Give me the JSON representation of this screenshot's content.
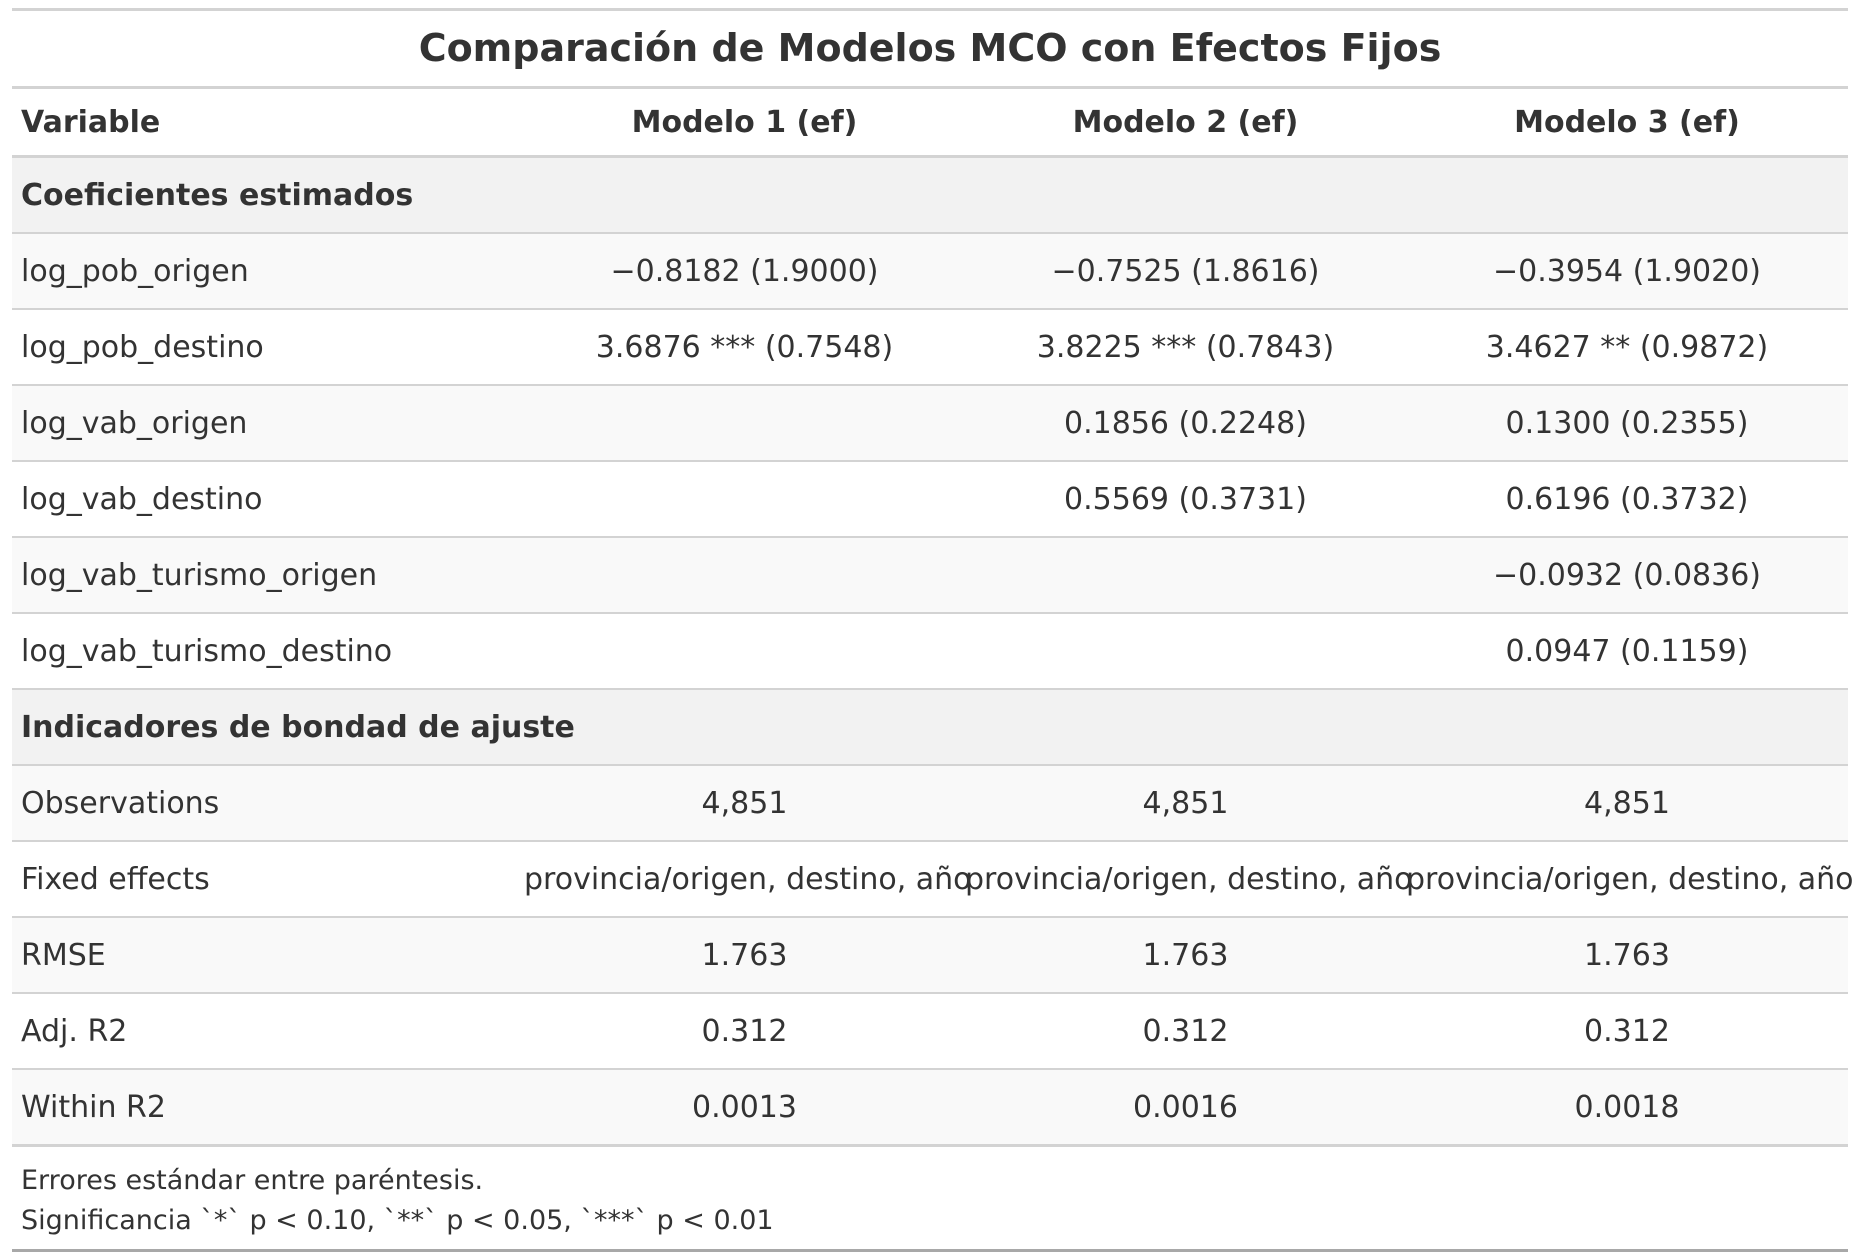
{
  "title": "Comparación de Modelos MCO con Efectos Fijos",
  "columns": [
    "Variable",
    "Modelo 1 (ef)",
    "Modelo 2 (ef)",
    "Modelo 3 (ef)"
  ],
  "groups": [
    {
      "label": "Coeficientes estimados",
      "rows": [
        {
          "variable": "log_pob_origen",
          "m1": "−0.8182 (1.9000)",
          "m2": "−0.7525 (1.8616)",
          "m3": "−0.3954 (1.9020)"
        },
        {
          "variable": "log_pob_destino",
          "m1": "3.6876 *** (0.7548)",
          "m2": "3.8225 *** (0.7843)",
          "m3": "3.4627 ** (0.9872)"
        },
        {
          "variable": "log_vab_origen",
          "m1": "",
          "m2": "0.1856 (0.2248)",
          "m3": "0.1300 (0.2355)"
        },
        {
          "variable": "log_vab_destino",
          "m1": "",
          "m2": "0.5569 (0.3731)",
          "m3": "0.6196 (0.3732)"
        },
        {
          "variable": "log_vab_turismo_origen",
          "m1": "",
          "m2": "",
          "m3": "−0.0932 (0.0836)"
        },
        {
          "variable": "log_vab_turismo_destino",
          "m1": "",
          "m2": "",
          "m3": "0.0947 (0.1159)"
        }
      ]
    },
    {
      "label": "Indicadores de bondad de ajuste",
      "rows": [
        {
          "variable": "Observations",
          "m1": "4,851",
          "m2": "4,851",
          "m3": "4,851"
        },
        {
          "variable": "Fixed effects",
          "m1": "provincia/origen, destino, año",
          "m2": "provincia/origen, destino, año",
          "m3": "provincia/origen, destino, año"
        },
        {
          "variable": "RMSE",
          "m1": "1.763",
          "m2": "1.763",
          "m3": "1.763"
        },
        {
          "variable": "Adj. R2",
          "m1": "0.312",
          "m2": "0.312",
          "m3": "0.312"
        },
        {
          "variable": "Within R2",
          "m1": "0.0013",
          "m2": "0.0016",
          "m3": "0.0018"
        }
      ]
    }
  ],
  "notes": [
    "Errores estándar entre paréntesis.",
    "Significancia `*` p < 0.10, `**` p < 0.05, `***` p < 0.01"
  ]
}
